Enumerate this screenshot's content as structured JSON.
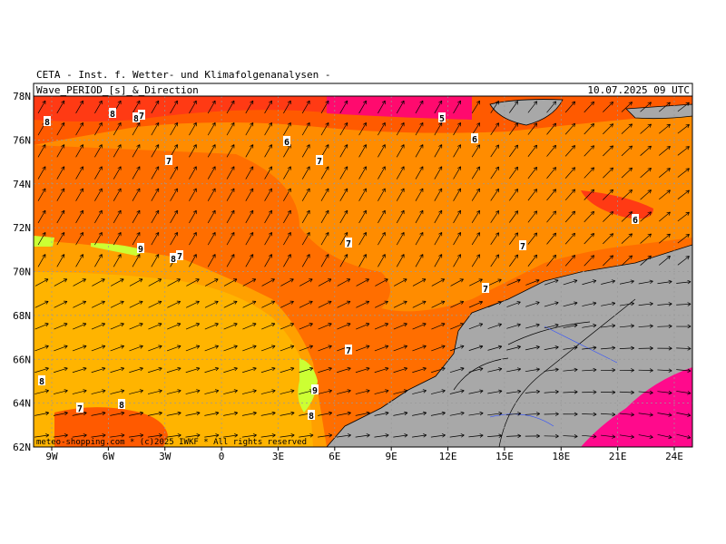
{
  "header": {
    "title": "CETA - Inst. f. Wetter- und Klimafolgenanalysen -",
    "field": "Wave_PERIOD_[s]_&_Direction",
    "valid_time": "10.07.2025 09 UTC"
  },
  "map": {
    "lat_labels": [
      "78N",
      "76N",
      "74N",
      "72N",
      "70N",
      "68N",
      "66N",
      "64N",
      "62N"
    ],
    "lon_labels": [
      "9W",
      "6W",
      "3W",
      "0",
      "3E",
      "6E",
      "9E",
      "12E",
      "15E",
      "18E",
      "21E",
      "24E"
    ],
    "contour_labels": [
      "8",
      "8",
      "8",
      "7",
      "5",
      "6",
      "6",
      "7",
      "7",
      "6",
      "7",
      "7",
      "9",
      "8",
      "7",
      "7",
      "7",
      "8",
      "9",
      "8",
      "7",
      "8"
    ],
    "copyright": "meteo-shopping.com * (c)2025 IWKF * All rights reserved"
  }
}
